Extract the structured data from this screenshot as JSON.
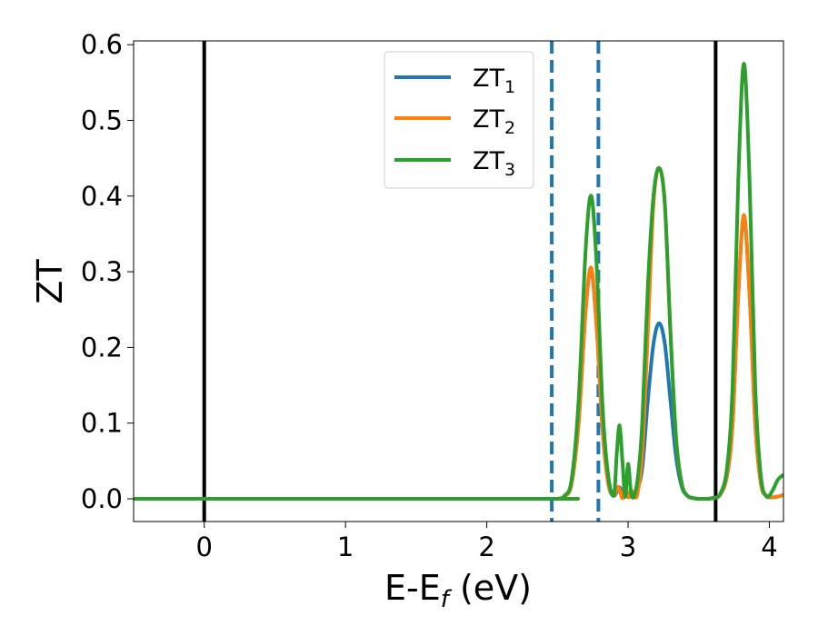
{
  "chart_data": {
    "type": "line",
    "xlabel": {
      "main": "E-E",
      "sub": "f",
      "rest": " (eV)"
    },
    "ylabel": "ZT",
    "xlim": [
      -0.5,
      4.1
    ],
    "ylim": [
      -0.03,
      0.605
    ],
    "xticks": [
      0,
      1,
      2,
      3,
      4
    ],
    "yticks": [
      0.0,
      0.1,
      0.2,
      0.3,
      0.4,
      0.5,
      0.6
    ],
    "ytick_labels": [
      "0.0",
      "0.1",
      "0.2",
      "0.3",
      "0.4",
      "0.5",
      "0.6"
    ],
    "grid": false,
    "legend_position": "upper-center",
    "series": [
      {
        "name": "ZT",
        "sub": "1",
        "color": "#1f77b4",
        "x": [
          -0.5,
          2.4,
          2.5,
          2.55,
          2.6,
          2.65,
          2.7,
          2.74,
          2.78,
          2.82,
          2.86,
          2.9,
          2.94,
          2.97,
          3.0,
          3.03,
          3.06,
          3.1,
          3.14,
          3.18,
          3.22,
          3.26,
          3.3,
          3.34,
          3.38,
          3.42,
          3.46,
          3.5,
          3.55,
          3.6,
          3.65,
          3.7,
          3.74,
          3.78,
          3.82,
          3.86,
          3.9,
          3.94,
          3.98,
          4.02,
          4.06,
          4.1
        ],
        "y": [
          0.0,
          0.0,
          0.0,
          0.003,
          0.02,
          0.1,
          0.25,
          0.302,
          0.22,
          0.09,
          0.02,
          0.004,
          0.015,
          0.002,
          0.008,
          0.002,
          0.01,
          0.04,
          0.13,
          0.205,
          0.232,
          0.205,
          0.13,
          0.055,
          0.016,
          0.004,
          0.001,
          0.0,
          0.0,
          0.001,
          0.005,
          0.03,
          0.1,
          0.27,
          0.372,
          0.27,
          0.1,
          0.02,
          0.004,
          0.002,
          0.003,
          0.005
        ]
      },
      {
        "name": "ZT",
        "sub": "2",
        "color": "#ff7f0e",
        "x": [
          -0.5,
          2.4,
          2.5,
          2.55,
          2.6,
          2.65,
          2.7,
          2.74,
          2.78,
          2.82,
          2.86,
          2.9,
          2.93,
          2.96,
          2.98,
          3.0,
          3.03,
          3.06,
          3.1,
          3.14,
          3.18,
          3.22,
          3.26,
          3.3,
          3.34,
          3.38,
          3.42,
          3.46,
          3.5,
          3.55,
          3.6,
          3.65,
          3.7,
          3.74,
          3.78,
          3.82,
          3.86,
          3.9,
          3.94,
          3.98,
          4.02,
          4.06,
          4.1
        ],
        "y": [
          0.0,
          0.0,
          0.0,
          0.003,
          0.02,
          0.1,
          0.25,
          0.305,
          0.22,
          0.09,
          0.02,
          0.005,
          0.016,
          0.001,
          0.02,
          0.002,
          0.01,
          0.002,
          0.06,
          0.22,
          0.39,
          0.437,
          0.39,
          0.22,
          0.08,
          0.02,
          0.004,
          0.001,
          0.0,
          0.0,
          0.001,
          0.005,
          0.03,
          0.1,
          0.27,
          0.375,
          0.27,
          0.1,
          0.02,
          0.004,
          0.002,
          0.003,
          0.005
        ]
      },
      {
        "name": "ZT",
        "sub": "3",
        "color": "#2ca02c",
        "x": [
          -0.5,
          2.4,
          2.5,
          2.55,
          2.6,
          2.65,
          2.7,
          2.74,
          2.78,
          2.82,
          2.86,
          2.9,
          2.92,
          2.94,
          2.96,
          2.98,
          3.0,
          3.02,
          3.04,
          3.07,
          3.1,
          3.14,
          3.18,
          3.22,
          3.26,
          3.3,
          3.34,
          3.38,
          3.42,
          3.46,
          3.5,
          3.55,
          3.6,
          3.65,
          3.7,
          3.74,
          3.78,
          3.82,
          3.86,
          3.9,
          3.94,
          3.98,
          4.02,
          4.06,
          4.1
        ],
        "y": [
          0.0,
          0.0,
          0.0,
          0.004,
          0.025,
          0.13,
          0.33,
          0.4,
          0.3,
          0.12,
          0.03,
          0.005,
          0.06,
          0.097,
          0.05,
          0.003,
          0.046,
          0.01,
          0.002,
          0.03,
          0.1,
          0.28,
          0.4,
          0.437,
          0.39,
          0.22,
          0.08,
          0.02,
          0.004,
          0.001,
          0.0,
          0.0,
          0.001,
          0.006,
          0.04,
          0.15,
          0.42,
          0.575,
          0.42,
          0.15,
          0.03,
          0.003,
          0.01,
          0.025,
          0.032
        ]
      }
    ],
    "vlines": [
      {
        "x": 0.0,
        "style": "solid",
        "color": "#000000"
      },
      {
        "x": 3.62,
        "style": "solid",
        "color": "#000000"
      },
      {
        "x": 2.46,
        "style": "dashed",
        "color": "#1f77b4"
      },
      {
        "x": 2.79,
        "style": "dashed",
        "color": "#1f77b4"
      }
    ]
  }
}
